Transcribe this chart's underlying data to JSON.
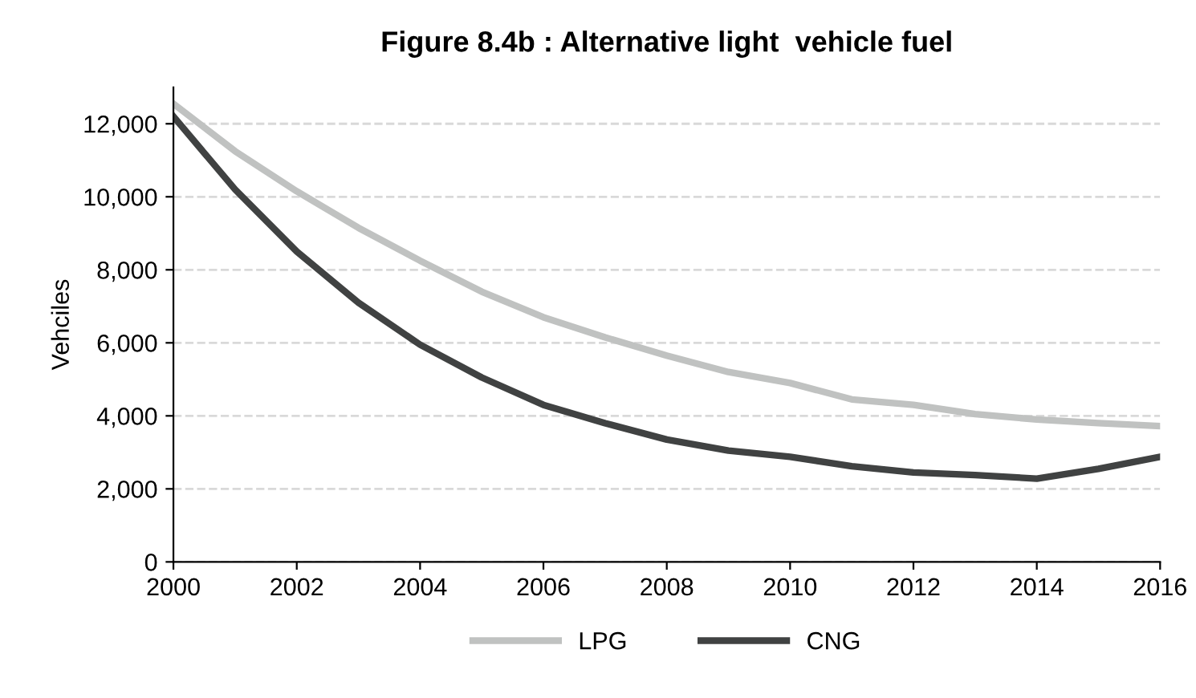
{
  "chart_data": {
    "type": "line",
    "title": "Figure 8.4b : Alternative light  vehicle fuel",
    "ylabel": "Vehciles",
    "x": [
      2000,
      2001,
      2002,
      2003,
      2004,
      2005,
      2006,
      2007,
      2008,
      2009,
      2010,
      2011,
      2012,
      2013,
      2014,
      2015,
      2016
    ],
    "series": [
      {
        "name": "LPG",
        "color": "#c0c2c1",
        "values": [
          12550,
          11250,
          10150,
          9150,
          8250,
          7400,
          6700,
          6150,
          5650,
          5200,
          4900,
          4450,
          4300,
          4050,
          3900,
          3800,
          3720
        ]
      },
      {
        "name": "CNG",
        "color": "#404242",
        "values": [
          12200,
          10200,
          8500,
          7100,
          5950,
          5050,
          4300,
          3800,
          3350,
          3050,
          2880,
          2620,
          2450,
          2380,
          2280,
          2550,
          2880
        ]
      }
    ],
    "xlim": [
      2000,
      2016
    ],
    "xticks": [
      2000,
      2002,
      2004,
      2006,
      2008,
      2010,
      2012,
      2014,
      2016
    ],
    "ylim": [
      0,
      13000
    ],
    "yticks": [
      {
        "value": 0,
        "label": "0"
      },
      {
        "value": 2000,
        "label": "2,000"
      },
      {
        "value": 4000,
        "label": "4,000"
      },
      {
        "value": 6000,
        "label": "6,000"
      },
      {
        "value": 8000,
        "label": "8,000"
      },
      {
        "value": 10000,
        "label": "10,000"
      },
      {
        "value": 12000,
        "label": "12,000"
      }
    ],
    "grid": "y",
    "legend": "bottom",
    "marker": "none",
    "line_style": "solid"
  }
}
